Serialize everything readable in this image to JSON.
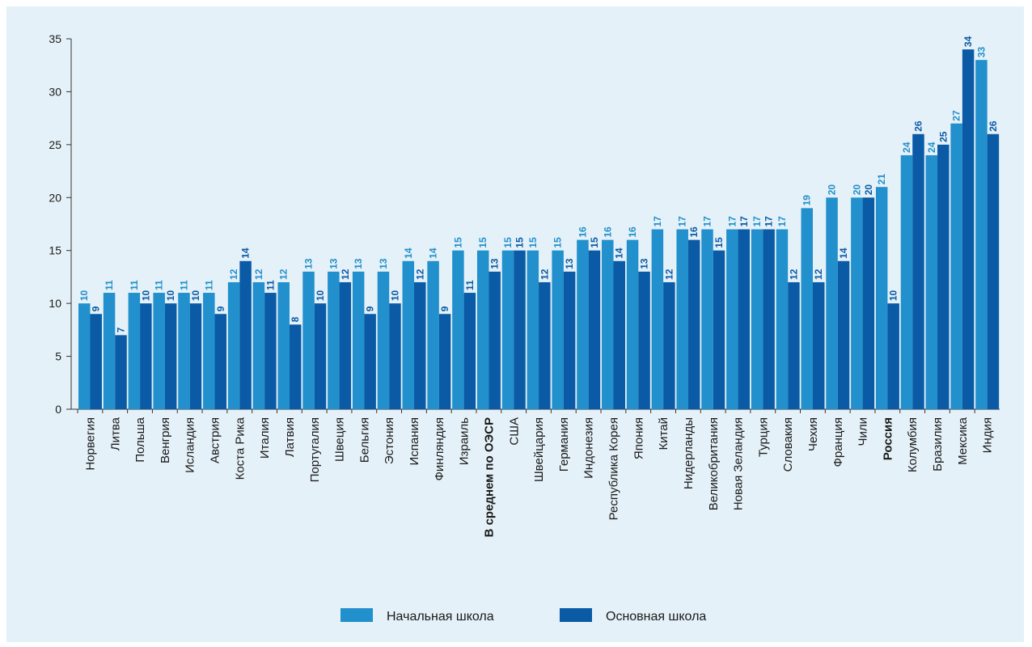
{
  "chart_data": {
    "type": "bar",
    "title": "",
    "xlabel": "",
    "ylabel": "",
    "ylim": [
      0,
      35
    ],
    "yticks": [
      0,
      5,
      10,
      15,
      20,
      25,
      30,
      35
    ],
    "grid": false,
    "legend_position": "bottom",
    "highlight_categories": [
      "В среднем по ОЭСР",
      "Россия"
    ],
    "categories": [
      "Норвегия",
      "Литва",
      "Польша",
      "Венгрия",
      "Исландия",
      "Австрия",
      "Коста Рика",
      "Италия",
      "Латвия",
      "Португалия",
      "Швеция",
      "Бельгия",
      "Эстония",
      "Испания",
      "Финляндия",
      "Израиль",
      "В среднем по ОЭСР",
      "США",
      "Швейцария",
      "Германия",
      "Индонезия",
      "Республика Корея",
      "Япония",
      "Китай",
      "Нидерланды",
      "Великобритания",
      "Новая Зеландия",
      "Турция",
      "Словакия",
      "Чехия",
      "Франция",
      "Чили",
      "Россия",
      "Колумбия",
      "Бразилия",
      "Мексика",
      "Индия"
    ],
    "series": [
      {
        "name": "Начальная школа",
        "color": "#2190cc",
        "values": [
          10,
          11,
          11,
          11,
          11,
          11,
          12,
          12,
          12,
          13,
          13,
          13,
          13,
          14,
          14,
          15,
          15,
          15,
          15,
          15,
          16,
          16,
          16,
          17,
          17,
          17,
          17,
          17,
          17,
          19,
          20,
          20,
          21,
          24,
          24,
          27,
          33
        ]
      },
      {
        "name": "Основная школа",
        "color": "#0a5aa6",
        "values": [
          9,
          7,
          10,
          10,
          10,
          9,
          14,
          11,
          8,
          10,
          12,
          9,
          10,
          12,
          9,
          11,
          13,
          15,
          12,
          13,
          15,
          14,
          13,
          12,
          16,
          15,
          17,
          17,
          12,
          12,
          14,
          20,
          10,
          26,
          25,
          34,
          26
        ]
      }
    ]
  }
}
